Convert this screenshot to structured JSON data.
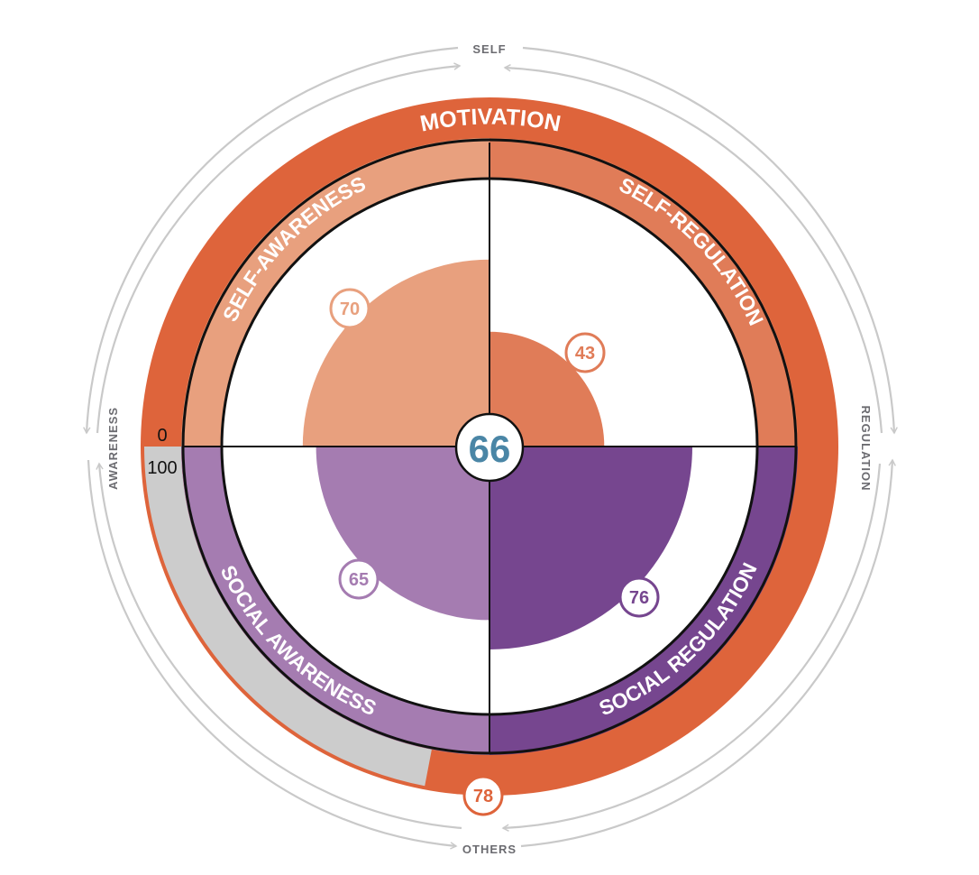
{
  "chart_data": {
    "type": "radial",
    "scale": {
      "min_label": "0",
      "max_label": "100"
    },
    "overall": {
      "value": "66"
    },
    "outer": {
      "label": "MOTIVATION",
      "value": 78,
      "value_label": "78"
    },
    "quadrants": [
      {
        "key": "self_awareness",
        "label": "SELF-AWARENESS",
        "value": 70,
        "value_label": "70"
      },
      {
        "key": "self_regulation",
        "label": "SELF-REGULATION",
        "value": 43,
        "value_label": "43"
      },
      {
        "key": "social_awareness",
        "label": "SOCIAL AWARENESS",
        "value": 65,
        "value_label": "65"
      },
      {
        "key": "social_regulation",
        "label": "SOCIAL REGULATION",
        "value": 76,
        "value_label": "76"
      }
    ],
    "axes": {
      "top": "SELF",
      "bottom": "OTHERS",
      "left": "AWARENESS",
      "right": "REGULATION"
    }
  },
  "colors": {
    "motivation": "#de643b",
    "self_awareness": "#e8a07e",
    "self_regulation": "#e07c58",
    "social_awareness": "#a57cb1",
    "social_regulation": "#76468f",
    "overall_text": "#4a86a6",
    "remainder": "#cccccc",
    "axis_arrow": "#c9c9c9",
    "axis_text": "#6b6b70"
  }
}
